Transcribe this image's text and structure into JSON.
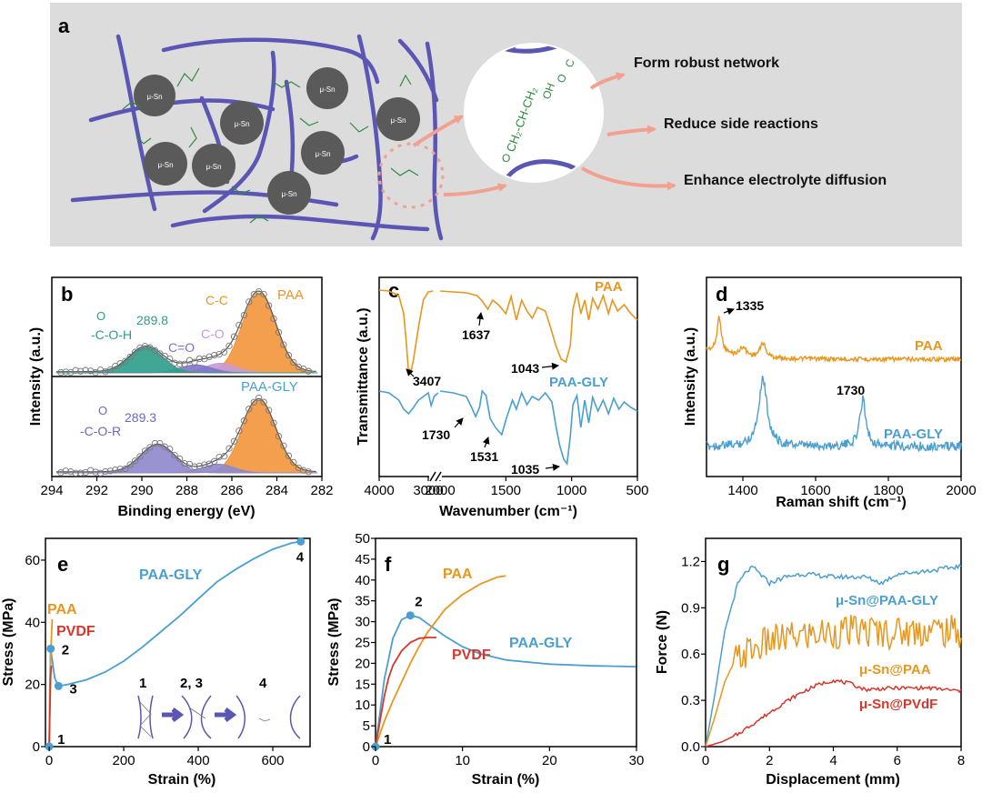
{
  "panel_a": {
    "label": "a",
    "particle_label": "μ-Sn",
    "zoom_chem_top": "CH₂-CH-CH₂",
    "zoom_chem_oh": "OH",
    "zoom_chem_o": "O",
    "zoom_chem_c": "C",
    "arrows": [
      "Form robust network",
      "Reduce side reactions",
      "Enhance electrolyte diffusion"
    ],
    "colors": {
      "bg": "#dcdcdc",
      "polymer": "#5b56b3",
      "particle": "#5a5a5a",
      "chem": "#2e8b3e",
      "arrow": "#f2a090"
    }
  },
  "chart_data": [
    {
      "id": "b",
      "type": "line",
      "label": "b",
      "xlabel": "Binding energy (eV)",
      "ylabel": "Intensity (a.u.)",
      "xlim": [
        294,
        282
      ],
      "xticks": [
        294,
        292,
        290,
        288,
        286,
        284,
        282
      ],
      "subplots": [
        {
          "name": "PAA",
          "peaks": [
            {
              "label": "C-C",
              "center": 284.8,
              "height": 1.0,
              "width": 0.75,
              "color": "#f2953a"
            },
            {
              "label": "C-O",
              "center": 286.5,
              "height": 0.12,
              "width": 0.7,
              "color": "#c79ad8"
            },
            {
              "label": "C=O",
              "center": 287.6,
              "height": 0.1,
              "width": 0.7,
              "color": "#7e74c8"
            },
            {
              "label": "-C-O-H 289.8",
              "center": 289.8,
              "height": 0.32,
              "width": 0.75,
              "color": "#2d9c88"
            }
          ]
        },
        {
          "name": "PAA-GLY",
          "peaks": [
            {
              "label": "C-C",
              "center": 284.8,
              "height": 1.0,
              "width": 0.75,
              "color": "#f2953a"
            },
            {
              "label": "",
              "center": 286.6,
              "height": 0.12,
              "width": 0.7,
              "color": "#8e88cc"
            },
            {
              "label": "-C-O-R 289.3",
              "center": 289.3,
              "height": 0.38,
              "width": 0.75,
              "color": "#8e88cc"
            }
          ]
        }
      ],
      "annotations": [
        "PAA",
        "C-C",
        "289.8",
        "-C-O-H",
        "C=O",
        "C-O",
        "PAA-GLY",
        "289.3",
        "-C-O-R",
        "O"
      ]
    },
    {
      "id": "c",
      "type": "line",
      "label": "c",
      "xlabel": "Wavenumber (cm⁻¹)",
      "ylabel": "Transmittance (a.u.)",
      "xticks": [
        "4000",
        "3000",
        "2000",
        "1500",
        "1000",
        "500"
      ],
      "series": [
        {
          "name": "PAA",
          "color": "#e8961e",
          "bands": [
            3407,
            1637,
            1043
          ]
        },
        {
          "name": "PAA-GLY",
          "color": "#4a9fd0",
          "bands": [
            1730,
            1531,
            1035
          ]
        }
      ],
      "band_labels": [
        "3407",
        "1637",
        "1043",
        "1730",
        "1531",
        "1035"
      ]
    },
    {
      "id": "d",
      "type": "line",
      "label": "d",
      "xlabel": "Raman shift (cm⁻¹)",
      "ylabel": "Intensity (a.u.)",
      "xlim": [
        1300,
        2000
      ],
      "xticks": [
        1400,
        1600,
        1800,
        2000
      ],
      "series": [
        {
          "name": "PAA",
          "color": "#e8961e",
          "peaks": [
            1335,
            1400,
            1455
          ]
        },
        {
          "name": "PAA-GLY",
          "color": "#4a9fd0",
          "peaks": [
            1455,
            1730
          ]
        }
      ],
      "peak_labels": [
        "1335",
        "1730"
      ]
    },
    {
      "id": "e",
      "type": "line",
      "label": "e",
      "xlabel": "Strain (%)",
      "ylabel": "Stress (MPa)",
      "xlim": [
        -10,
        700
      ],
      "ylim": [
        0,
        67
      ],
      "xticks": [
        0,
        200,
        400,
        600
      ],
      "yticks": [
        0,
        20,
        40,
        60
      ],
      "series": [
        {
          "name": "PAA-GLY",
          "color": "#4a9fd0",
          "x": [
            0,
            2,
            4,
            8,
            15,
            25,
            50,
            100,
            150,
            200,
            250,
            300,
            350,
            400,
            450,
            500,
            550,
            600,
            650,
            675
          ],
          "y": [
            0,
            20,
            31.5,
            28,
            22,
            19.5,
            20,
            21.5,
            24,
            27.5,
            32,
            37,
            42,
            47.5,
            53,
            57,
            60.5,
            63.5,
            65.5,
            66
          ]
        },
        {
          "name": "PAA",
          "color": "#e8961e",
          "x": [
            0,
            2,
            5,
            8
          ],
          "y": [
            0,
            15,
            32,
            41
          ]
        },
        {
          "name": "PVDF",
          "color": "#d9352a",
          "x": [
            0,
            2,
            4,
            6
          ],
          "y": [
            0,
            12,
            23,
            26
          ]
        }
      ],
      "points": [
        {
          "label": "1",
          "x": 0,
          "y": 0
        },
        {
          "label": "2",
          "x": 4,
          "y": 31.5
        },
        {
          "label": "3",
          "x": 25,
          "y": 19.5
        },
        {
          "label": "4",
          "x": 675,
          "y": 66
        }
      ],
      "inset_labels": [
        "1",
        "2, 3",
        "4"
      ],
      "legend": [
        "PAA-GLY",
        "PAA",
        "PVDF"
      ]
    },
    {
      "id": "f",
      "type": "line",
      "label": "f",
      "xlabel": "Strain (%)",
      "ylabel": "Stress (MPa)",
      "xlim": [
        0,
        30
      ],
      "ylim": [
        0,
        50
      ],
      "xticks": [
        0,
        10,
        20,
        30
      ],
      "yticks": [
        0,
        5,
        10,
        15,
        20,
        25,
        30,
        35,
        40,
        45,
        50
      ],
      "series": [
        {
          "name": "PAA-GLY",
          "color": "#4a9fd0",
          "x": [
            0,
            0.5,
            1,
            2,
            3,
            4,
            5,
            6,
            8,
            10,
            12,
            15,
            20,
            25,
            30
          ],
          "y": [
            0,
            8,
            16,
            26,
            30.5,
            31.5,
            31,
            29.5,
            26.5,
            24,
            22.3,
            20.8,
            19.8,
            19.4,
            19.2
          ]
        },
        {
          "name": "PAA",
          "color": "#e8961e",
          "x": [
            0,
            0.5,
            1,
            2,
            3,
            4,
            5,
            6,
            8,
            10,
            12,
            14,
            15
          ],
          "y": [
            0,
            3,
            6,
            11,
            15.5,
            20,
            24,
            27.5,
            33,
            36.5,
            39,
            40.7,
            41
          ]
        },
        {
          "name": "PVDF",
          "color": "#d9352a",
          "x": [
            0,
            0.5,
            1,
            1.5,
            2,
            3,
            4,
            5,
            6,
            7
          ],
          "y": [
            0,
            6,
            12,
            16.5,
            19.5,
            23,
            25,
            26,
            26.2,
            26.2
          ]
        }
      ],
      "points": [
        {
          "label": "1",
          "x": 0,
          "y": 0
        },
        {
          "label": "2",
          "x": 4,
          "y": 31.5
        }
      ],
      "legend": [
        "PAA",
        "PVDF",
        "PAA-GLY"
      ]
    },
    {
      "id": "g",
      "type": "line",
      "label": "g",
      "xlabel": "Displacement (mm)",
      "ylabel": "Force (N)",
      "xlim": [
        0,
        8
      ],
      "ylim": [
        0,
        1.35
      ],
      "xticks": [
        0,
        2,
        4,
        6,
        8
      ],
      "yticks": [
        "0.0",
        "0.3",
        "0.6",
        "0.9",
        "1.2"
      ],
      "series": [
        {
          "name": "μ-Sn@PAA-GLY",
          "color": "#4a9fd0",
          "x": [
            0,
            0.3,
            0.6,
            1.0,
            1.3,
            1.5,
            1.8,
            2.0,
            2.5,
            3.0,
            4.0,
            5.0,
            5.5,
            6.0,
            7.0,
            8.0
          ],
          "y": [
            0,
            0.35,
            0.75,
            1.05,
            1.14,
            1.16,
            1.1,
            1.06,
            1.1,
            1.12,
            1.1,
            1.1,
            1.06,
            1.12,
            1.14,
            1.17
          ]
        },
        {
          "name": "μ-Sn@PAA",
          "color": "#e8961e",
          "x": [
            0,
            0.3,
            0.6,
            0.9,
            1.2,
            1.6,
            2.0,
            3.0,
            4.0,
            5.0,
            6.0,
            7.0,
            8.0
          ],
          "y": [
            0,
            0.2,
            0.42,
            0.55,
            0.6,
            0.64,
            0.68,
            0.72,
            0.74,
            0.75,
            0.74,
            0.76,
            0.74
          ]
        },
        {
          "name": "μ-Sn@PVdF",
          "color": "#d9352a",
          "x": [
            0,
            0.5,
            1.0,
            1.5,
            2.0,
            2.5,
            3.0,
            3.5,
            4.0,
            4.5,
            5.0,
            6.0,
            7.0,
            8.0
          ],
          "y": [
            0,
            0.03,
            0.08,
            0.15,
            0.22,
            0.29,
            0.35,
            0.4,
            0.43,
            0.41,
            0.37,
            0.38,
            0.38,
            0.36
          ]
        }
      ],
      "legend": [
        "μ-Sn@PAA-GLY",
        "μ-Sn@PAA",
        "μ-Sn@PVdF"
      ]
    }
  ]
}
